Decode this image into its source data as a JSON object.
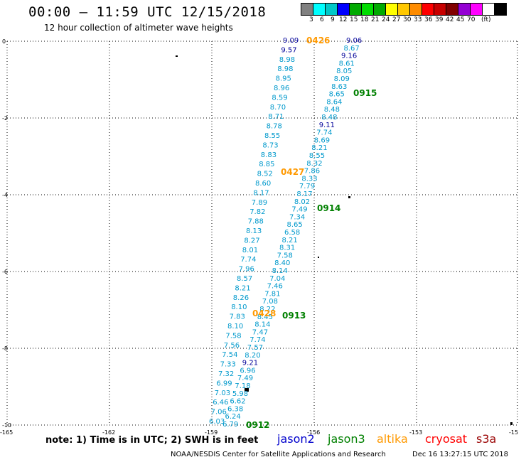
{
  "header": {
    "title": "00:00 – 11:59 UTC 12/15/2018",
    "subtitle": "12 hour collection of altimeter wave heights"
  },
  "legend": {
    "unit": "(ft)",
    "labels": [
      "3",
      "6",
      "9",
      "12",
      "15",
      "18",
      "21",
      "24",
      "27",
      "30",
      "33",
      "36",
      "39",
      "42",
      "45",
      "70"
    ],
    "colors": [
      "#808080",
      "#00ffff",
      "#00c8c8",
      "#0000ff",
      "#00aa00",
      "#00dd00",
      "#00aa00",
      "#ffff00",
      "#ffc800",
      "#ff8c00",
      "#ff0000",
      "#c80000",
      "#800000",
      "#9400d3",
      "#ff00ff",
      "#ffffff",
      "#000000"
    ]
  },
  "axes": {
    "y_ticks": [
      "0",
      "-2",
      "-4",
      "-6",
      "-8",
      "-10"
    ],
    "x_ticks": [
      "-165",
      "-162",
      "-159",
      "-156",
      "-153",
      "-15"
    ]
  },
  "passes": [
    {
      "label": "0426",
      "color": "#ff9900"
    },
    {
      "label": "0915",
      "color": "#008000"
    },
    {
      "label": "0427",
      "color": "#ff9900"
    },
    {
      "label": "0914",
      "color": "#008000"
    },
    {
      "label": "0428",
      "color": "#ff9900"
    },
    {
      "label": "0913",
      "color": "#008000"
    },
    {
      "label": "0912",
      "color": "#008000"
    }
  ],
  "colors": {
    "cyan": "#0099cc",
    "navy": "#000099",
    "green": "#008000",
    "orange": "#ff9900"
  },
  "track_a": [
    {
      "v": "9.09",
      "c": "navy"
    },
    {
      "v": "9.57",
      "c": "navy"
    },
    {
      "v": "8.98",
      "c": "cyan"
    },
    {
      "v": "8.98",
      "c": "cyan"
    },
    {
      "v": "8.95",
      "c": "cyan"
    },
    {
      "v": "8.96",
      "c": "cyan"
    },
    {
      "v": "8.59",
      "c": "cyan"
    },
    {
      "v": "8.70",
      "c": "cyan"
    },
    {
      "v": "8.71",
      "c": "cyan"
    },
    {
      "v": "8.78",
      "c": "cyan"
    },
    {
      "v": "8.55",
      "c": "cyan"
    },
    {
      "v": "8.73",
      "c": "cyan"
    },
    {
      "v": "8.83",
      "c": "cyan"
    },
    {
      "v": "8.85",
      "c": "cyan"
    },
    {
      "v": "8.52",
      "c": "cyan"
    },
    {
      "v": "8.60",
      "c": "cyan"
    },
    {
      "v": "8.17",
      "c": "cyan"
    },
    {
      "v": "7.89",
      "c": "cyan"
    },
    {
      "v": "7.82",
      "c": "cyan"
    },
    {
      "v": "7.88",
      "c": "cyan"
    },
    {
      "v": "8.13",
      "c": "cyan"
    },
    {
      "v": "8.27",
      "c": "cyan"
    },
    {
      "v": "8.01",
      "c": "cyan"
    },
    {
      "v": "7.74",
      "c": "cyan"
    },
    {
      "v": "7.96",
      "c": "cyan"
    },
    {
      "v": "8.57",
      "c": "cyan"
    },
    {
      "v": "8.21",
      "c": "cyan"
    },
    {
      "v": "8.26",
      "c": "cyan"
    },
    {
      "v": "8.10",
      "c": "cyan"
    },
    {
      "v": "7.83",
      "c": "cyan"
    },
    {
      "v": "8.10",
      "c": "cyan"
    },
    {
      "v": "7.58",
      "c": "cyan"
    },
    {
      "v": "7.56",
      "c": "cyan"
    },
    {
      "v": "7.54",
      "c": "cyan"
    },
    {
      "v": "7.33",
      "c": "cyan"
    },
    {
      "v": "7.32",
      "c": "cyan"
    },
    {
      "v": "6.99",
      "c": "cyan"
    },
    {
      "v": "7.03",
      "c": "cyan"
    },
    {
      "v": "6.46",
      "c": "cyan"
    },
    {
      "v": "7.06",
      "c": "cyan"
    },
    {
      "v": "6.03",
      "c": "cyan"
    }
  ],
  "track_b": [
    {
      "v": "9.06",
      "c": "navy"
    },
    {
      "v": "8.67",
      "c": "cyan"
    },
    {
      "v": "9.16",
      "c": "navy"
    },
    {
      "v": "8.61",
      "c": "cyan"
    },
    {
      "v": "8.05",
      "c": "cyan"
    },
    {
      "v": "8.09",
      "c": "cyan"
    },
    {
      "v": "8.63",
      "c": "cyan"
    },
    {
      "v": "8.65",
      "c": "cyan"
    },
    {
      "v": "8.64",
      "c": "cyan"
    },
    {
      "v": "8.48",
      "c": "cyan"
    },
    {
      "v": "8.48",
      "c": "cyan"
    },
    {
      "v": "9.11",
      "c": "navy"
    },
    {
      "v": "7.74",
      "c": "cyan"
    },
    {
      "v": "8.69",
      "c": "cyan"
    },
    {
      "v": "8.21",
      "c": "cyan"
    },
    {
      "v": "8.55",
      "c": "cyan"
    },
    {
      "v": "8.32",
      "c": "cyan"
    },
    {
      "v": "7.86",
      "c": "cyan"
    },
    {
      "v": "8.33",
      "c": "cyan"
    },
    {
      "v": "7.79",
      "c": "cyan"
    },
    {
      "v": "8.17",
      "c": "cyan"
    },
    {
      "v": "8.02",
      "c": "cyan"
    },
    {
      "v": "7.49",
      "c": "cyan"
    },
    {
      "v": "7.34",
      "c": "cyan"
    },
    {
      "v": "8.65",
      "c": "cyan"
    },
    {
      "v": "6.58",
      "c": "cyan"
    },
    {
      "v": "8.21",
      "c": "cyan"
    },
    {
      "v": "8.31",
      "c": "cyan"
    },
    {
      "v": "7.58",
      "c": "cyan"
    },
    {
      "v": "8.40",
      "c": "cyan"
    },
    {
      "v": "8.14",
      "c": "cyan"
    },
    {
      "v": "7.04",
      "c": "cyan"
    },
    {
      "v": "7.46",
      "c": "cyan"
    },
    {
      "v": "7.81",
      "c": "cyan"
    },
    {
      "v": "7.08",
      "c": "cyan"
    },
    {
      "v": "8.22",
      "c": "cyan"
    },
    {
      "v": "8.45",
      "c": "cyan"
    },
    {
      "v": "8.14",
      "c": "cyan"
    },
    {
      "v": "7.47",
      "c": "cyan"
    },
    {
      "v": "7.74",
      "c": "cyan"
    },
    {
      "v": "7.57",
      "c": "cyan"
    },
    {
      "v": "8.20",
      "c": "cyan"
    },
    {
      "v": "9.21",
      "c": "navy"
    },
    {
      "v": "6.96",
      "c": "cyan"
    },
    {
      "v": "7.49",
      "c": "cyan"
    },
    {
      "v": "7.18",
      "c": "cyan"
    },
    {
      "v": "5.98",
      "c": "cyan"
    },
    {
      "v": "6.62",
      "c": "cyan"
    },
    {
      "v": "6.38",
      "c": "cyan"
    },
    {
      "v": "6.24",
      "c": "cyan"
    },
    {
      "v": "6.79",
      "c": "cyan"
    }
  ],
  "footer": {
    "note": "note: 1) Time is in UTC; 2) SWH is in feet",
    "satellites": [
      {
        "name": "jason2",
        "color": "#0000cc"
      },
      {
        "name": "jason3",
        "color": "#008000"
      },
      {
        "name": "altika",
        "color": "#ff9900"
      },
      {
        "name": "cryosat",
        "color": "#ff0000"
      },
      {
        "name": "s3a",
        "color": "#990000"
      }
    ],
    "credit": "NOAA/NESDIS Center for Satellite Applications and Research",
    "timestamp": "Dec 16 13:27:15 UTC 2018"
  }
}
